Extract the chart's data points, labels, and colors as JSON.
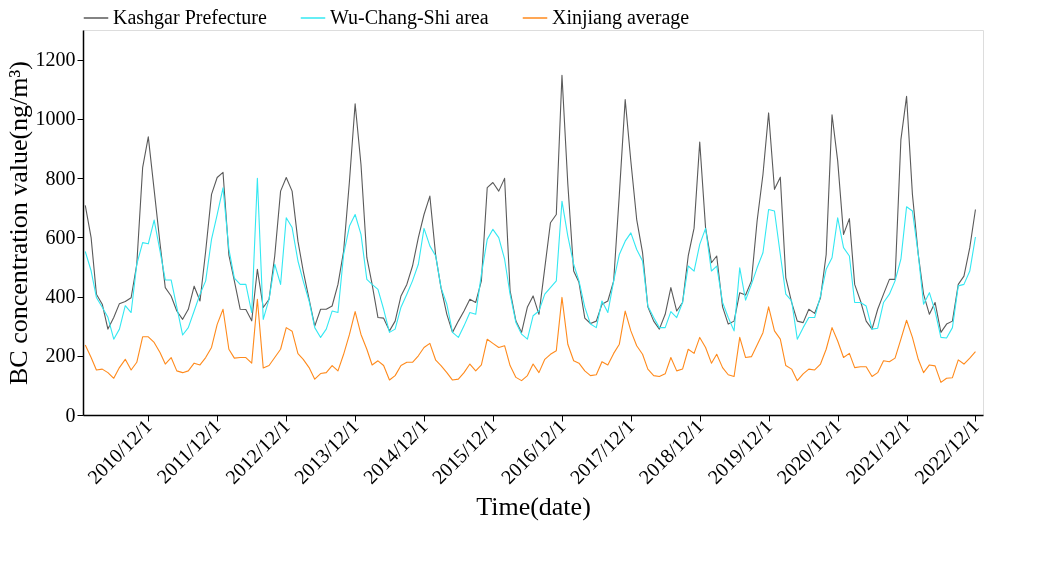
{
  "chart_data": {
    "type": "line",
    "xlabel": "Time(date)",
    "ylabel": "BC concentration value(ng/m³)",
    "x": [
      "2010-01",
      "2010-02",
      "2010-03",
      "2010-04",
      "2010-05",
      "2010-06",
      "2010-07",
      "2010-08",
      "2010-09",
      "2010-10",
      "2010-11",
      "2010-12",
      "2011-01",
      "2011-02",
      "2011-03",
      "2011-04",
      "2011-05",
      "2011-06",
      "2011-07",
      "2011-08",
      "2011-09",
      "2011-10",
      "2011-11",
      "2011-12",
      "2012-01",
      "2012-02",
      "2012-03",
      "2012-04",
      "2012-05",
      "2012-06",
      "2012-07",
      "2012-08",
      "2012-09",
      "2012-10",
      "2012-11",
      "2012-12",
      "2013-01",
      "2013-02",
      "2013-03",
      "2013-04",
      "2013-05",
      "2013-06",
      "2013-07",
      "2013-08",
      "2013-09",
      "2013-10",
      "2013-11",
      "2013-12",
      "2014-01",
      "2014-02",
      "2014-03",
      "2014-04",
      "2014-05",
      "2014-06",
      "2014-07",
      "2014-08",
      "2014-09",
      "2014-10",
      "2014-11",
      "2014-12",
      "2015-01",
      "2015-02",
      "2015-03",
      "2015-04",
      "2015-05",
      "2015-06",
      "2015-07",
      "2015-08",
      "2015-09",
      "2015-10",
      "2015-11",
      "2015-12",
      "2016-01",
      "2016-02",
      "2016-03",
      "2016-04",
      "2016-05",
      "2016-06",
      "2016-07",
      "2016-08",
      "2016-09",
      "2016-10",
      "2016-11",
      "2016-12",
      "2017-01",
      "2017-02",
      "2017-03",
      "2017-04",
      "2017-05",
      "2017-06",
      "2017-07",
      "2017-08",
      "2017-09",
      "2017-10",
      "2017-11",
      "2017-12",
      "2018-01",
      "2018-02",
      "2018-03",
      "2018-04",
      "2018-05",
      "2018-06",
      "2018-07",
      "2018-08",
      "2018-09",
      "2018-10",
      "2018-11",
      "2018-12",
      "2019-01",
      "2019-02",
      "2019-03",
      "2019-04",
      "2019-05",
      "2019-06",
      "2019-07",
      "2019-08",
      "2019-09",
      "2019-10",
      "2019-11",
      "2019-12",
      "2020-01",
      "2020-02",
      "2020-03",
      "2020-04",
      "2020-05",
      "2020-06",
      "2020-07",
      "2020-08",
      "2020-09",
      "2020-10",
      "2020-11",
      "2020-12",
      "2021-01",
      "2021-02",
      "2021-03",
      "2021-04",
      "2021-05",
      "2021-06",
      "2021-07",
      "2021-08",
      "2021-09",
      "2021-10",
      "2021-11",
      "2021-12",
      "2022-01",
      "2022-02",
      "2022-03",
      "2022-04",
      "2022-05",
      "2022-06",
      "2022-07",
      "2022-08",
      "2022-09",
      "2022-10",
      "2022-11",
      "2022-12"
    ],
    "series": [
      {
        "name": "Kashgar Prefecture",
        "color": "#5a5a5a",
        "values": [
          708,
          599,
          408,
          374,
          290,
          329,
          376,
          383,
          396,
          509,
          835,
          939,
          760,
          580,
          430,
          402,
          351,
          323,
          357,
          435,
          385,
          553,
          745,
          802,
          819,
          540,
          453,
          357,
          356,
          318,
          492,
          363,
          391,
          537,
          756,
          802,
          756,
          587,
          486,
          391,
          300,
          357,
          357,
          368,
          441,
          553,
          790,
          1051,
          846,
          532,
          441,
          329,
          327,
          284,
          317,
          402,
          441,
          503,
          599,
          677,
          739,
          537,
          430,
          340,
          279,
          317,
          351,
          391,
          380,
          453,
          768,
          785,
          756,
          799,
          420,
          317,
          279,
          365,
          402,
          340,
          497,
          649,
          677,
          1147,
          780,
          486,
          448,
          327,
          309,
          317,
          374,
          385,
          453,
          745,
          1065,
          857,
          660,
          548,
          365,
          317,
          290,
          340,
          430,
          351,
          380,
          537,
          631,
          922,
          631,
          514,
          537,
          365,
          307,
          317,
          413,
          405,
          453,
          655,
          812,
          1020,
          762,
          803,
          464,
          380,
          317,
          312,
          357,
          343,
          396,
          542,
          1014,
          858,
          610,
          663,
          441,
          385,
          317,
          290,
          357,
          408,
          458,
          458,
          930,
          1076,
          745,
          542,
          408,
          340,
          380,
          279,
          307,
          317,
          441,
          469,
          565,
          694
        ]
      },
      {
        "name": "Wu-Chang-Shi area",
        "color": "#33e8f2",
        "values": [
          552,
          487,
          397,
          364,
          330,
          256,
          290,
          369,
          346,
          509,
          582,
          578,
          658,
          554,
          456,
          456,
          364,
          270,
          295,
          351,
          408,
          453,
          593,
          677,
          767,
          560,
          462,
          441,
          441,
          346,
          799,
          323,
          391,
          509,
          441,
          666,
          633,
          520,
          452,
          385,
          295,
          262,
          290,
          351,
          346,
          542,
          638,
          677,
          610,
          458,
          441,
          424,
          357,
          279,
          290,
          364,
          408,
          453,
          509,
          630,
          571,
          537,
          430,
          374,
          279,
          262,
          301,
          346,
          340,
          475,
          593,
          627,
          599,
          526,
          408,
          312,
          273,
          256,
          335,
          351,
          408,
          430,
          453,
          722,
          604,
          509,
          453,
          364,
          307,
          295,
          385,
          346,
          453,
          542,
          587,
          615,
          559,
          520,
          368,
          329,
          295,
          295,
          349,
          329,
          380,
          503,
          486,
          576,
          630,
          486,
          503,
          380,
          329,
          284,
          497,
          388,
          441,
          497,
          548,
          694,
          689,
          542,
          408,
          385,
          256,
          295,
          329,
          329,
          402,
          492,
          531,
          666,
          565,
          537,
          380,
          380,
          368,
          290,
          293,
          380,
          408,
          453,
          526,
          703,
          689,
          542,
          374,
          413,
          351,
          262,
          260,
          295,
          436,
          441,
          486,
          601
        ]
      },
      {
        "name": "Xinjiang average",
        "color": "#ff8a1c",
        "values": [
          236,
          194,
          152,
          155,
          143,
          124,
          160,
          188,
          152,
          178,
          264,
          264,
          245,
          211,
          172,
          194,
          149,
          143,
          149,
          175,
          169,
          194,
          228,
          306,
          357,
          222,
          192,
          194,
          194,
          175,
          391,
          159,
          167,
          194,
          222,
          295,
          283,
          207,
          188,
          160,
          121,
          140,
          143,
          167,
          149,
          205,
          272,
          349,
          272,
          222,
          169,
          183,
          167,
          118,
          133,
          167,
          178,
          178,
          200,
          228,
          242,
          185,
          167,
          143,
          118,
          121,
          143,
          172,
          149,
          169,
          256,
          242,
          228,
          234,
          167,
          127,
          116,
          133,
          172,
          143,
          188,
          205,
          217,
          397,
          239,
          183,
          175,
          149,
          133,
          136,
          180,
          169,
          208,
          239,
          351,
          284,
          234,
          205,
          155,
          133,
          130,
          139,
          194,
          149,
          155,
          222,
          208,
          262,
          228,
          175,
          205,
          160,
          136,
          130,
          262,
          194,
          197,
          236,
          278,
          365,
          284,
          256,
          167,
          155,
          116,
          139,
          155,
          152,
          172,
          222,
          295,
          250,
          194,
          208,
          160,
          163,
          163,
          130,
          143,
          183,
          180,
          192,
          256,
          320,
          262,
          188,
          143,
          169,
          166,
          110,
          124,
          126,
          186,
          172,
          192,
          214
        ]
      }
    ],
    "xlim": [
      "2009-12-20",
      "2023-01-10"
    ],
    "xticks": [
      {
        "value": "2010-12-01",
        "label": "2010/12/1"
      },
      {
        "value": "2011-12-01",
        "label": "2011/12/1"
      },
      {
        "value": "2012-12-01",
        "label": "2012/12/1"
      },
      {
        "value": "2013-12-01",
        "label": "2013/12/1"
      },
      {
        "value": "2014-12-01",
        "label": "2014/12/1"
      },
      {
        "value": "2015-12-01",
        "label": "2015/12/1"
      },
      {
        "value": "2016-12-01",
        "label": "2016/12/1"
      },
      {
        "value": "2017-12-01",
        "label": "2017/12/1"
      },
      {
        "value": "2018-12-01",
        "label": "2018/12/1"
      },
      {
        "value": "2019-12-01",
        "label": "2019/12/1"
      },
      {
        "value": "2020-12-01",
        "label": "2020/12/1"
      },
      {
        "value": "2021-12-01",
        "label": "2021/12/1"
      },
      {
        "value": "2022-12-01",
        "label": "2022/12/1"
      }
    ],
    "ylim": [
      0,
      1300
    ],
    "yticks": [
      0,
      200,
      400,
      600,
      800,
      1000,
      1200
    ],
    "grid": false,
    "legend": "top",
    "marker": "none",
    "line_style": "solid"
  }
}
